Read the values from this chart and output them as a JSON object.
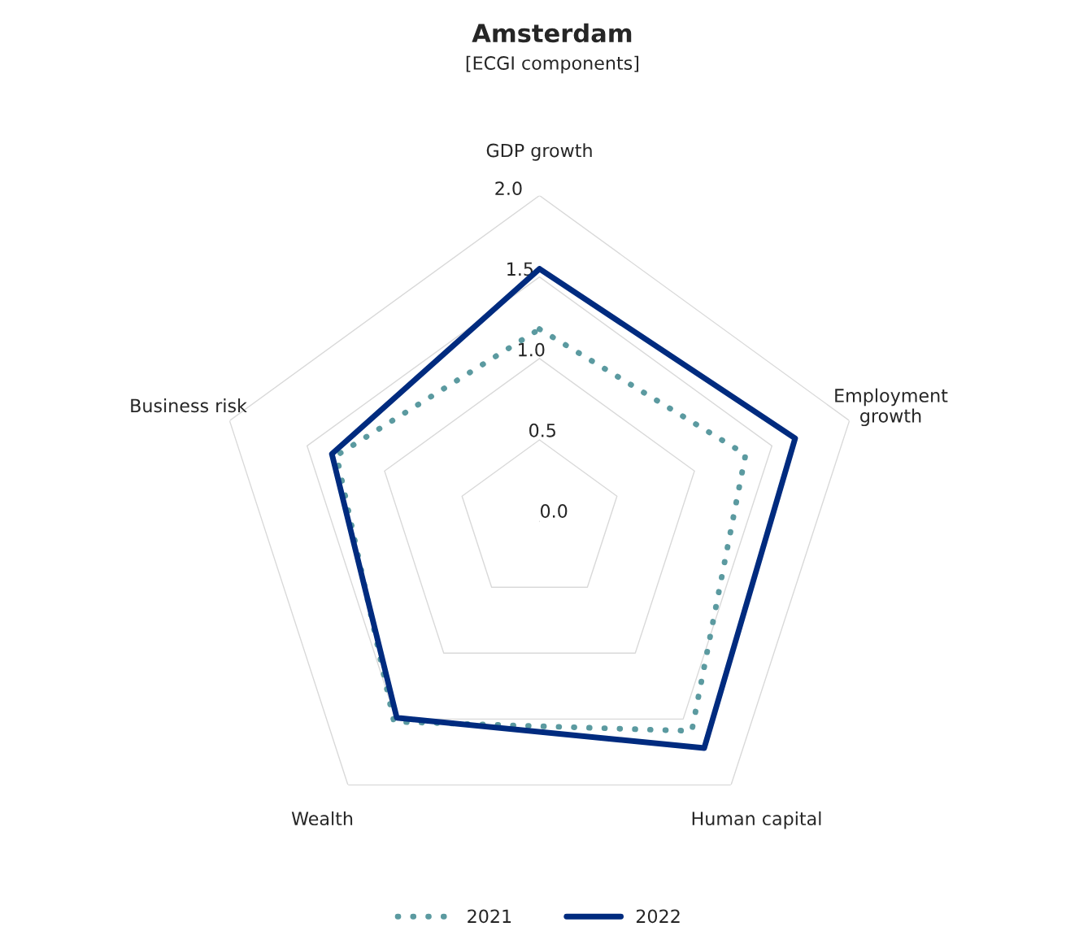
{
  "chart_data": {
    "type": "radar",
    "title": "Amsterdam",
    "subtitle": "[ECGI components]",
    "categories": [
      "GDP growth",
      "Employment\ngrowth",
      "Human capital",
      "Wealth",
      "Business risk"
    ],
    "series": [
      {
        "name": "2021",
        "color": "#5b9aa0",
        "line_style": "dotted",
        "values": [
          1.18,
          1.33,
          1.59,
          1.52,
          1.31
        ]
      },
      {
        "name": "2022",
        "color": "#002b7f",
        "line_style": "solid",
        "values": [
          1.55,
          1.65,
          1.72,
          1.49,
          1.34
        ]
      }
    ],
    "ylim": [
      0,
      2
    ],
    "yticks": [
      {
        "value": 0,
        "label": "0.0"
      },
      {
        "value": 0.5,
        "label": "0.5"
      },
      {
        "value": 1,
        "label": "1.0"
      },
      {
        "value": 1.5,
        "label": "1.5"
      },
      {
        "value": 2,
        "label": "2.0"
      }
    ],
    "grid": true,
    "legend": "bottom"
  }
}
